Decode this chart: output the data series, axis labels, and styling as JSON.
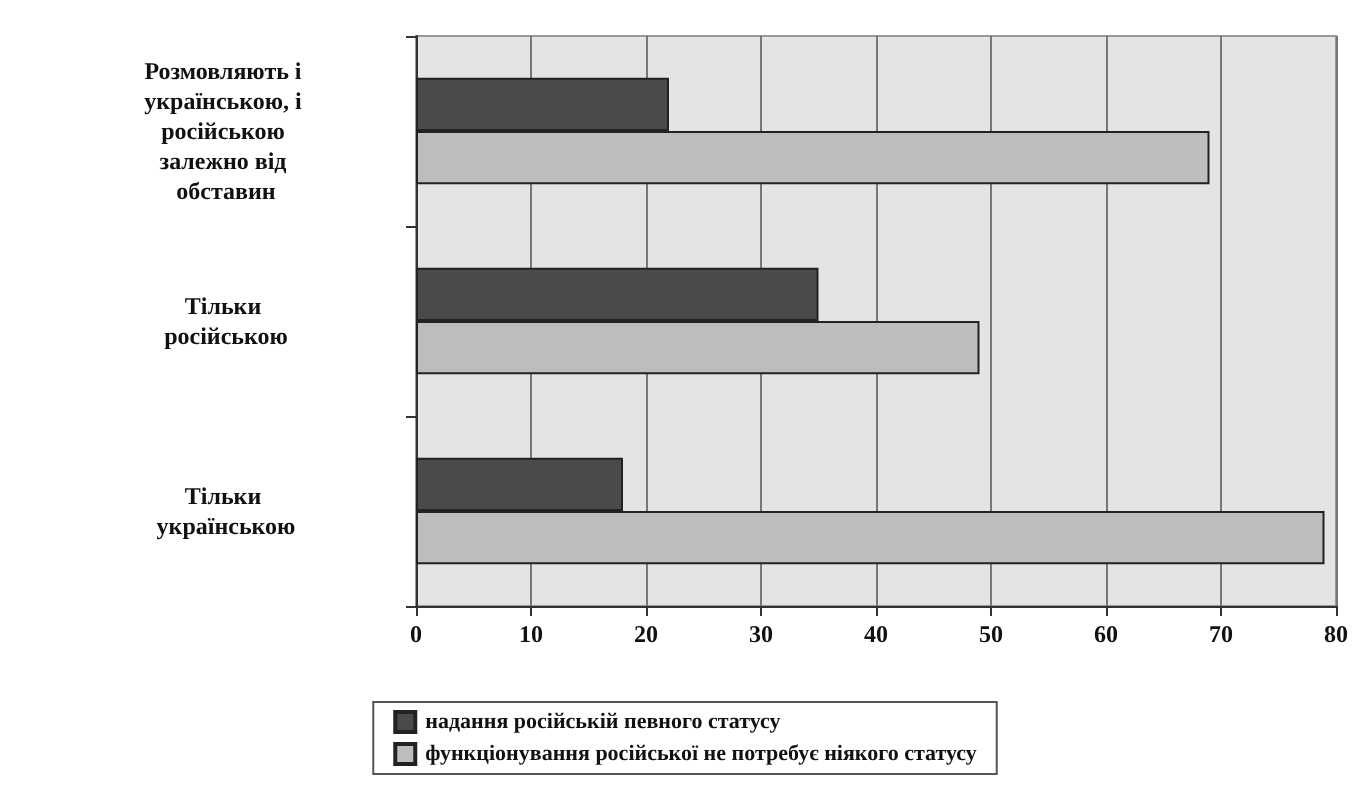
{
  "chart_data": {
    "type": "bar",
    "orientation": "horizontal",
    "categories": [
      "Розмовляють і українською, і російською залежно від обставин",
      "Тільки російською",
      "Тільки українською"
    ],
    "series": [
      {
        "name": "надання російській певного статусу",
        "color": "#4a4a4a",
        "values": [
          22,
          35,
          18
        ]
      },
      {
        "name": "функціонування російської не потребує ніякого статусу",
        "color": "#bdbdbd",
        "values": [
          69,
          49,
          79
        ]
      }
    ],
    "xlim": [
      0,
      80
    ],
    "xticks": [
      0,
      10,
      20,
      30,
      40,
      50,
      60,
      70,
      80
    ],
    "grid": "x",
    "legend": "bottom"
  }
}
